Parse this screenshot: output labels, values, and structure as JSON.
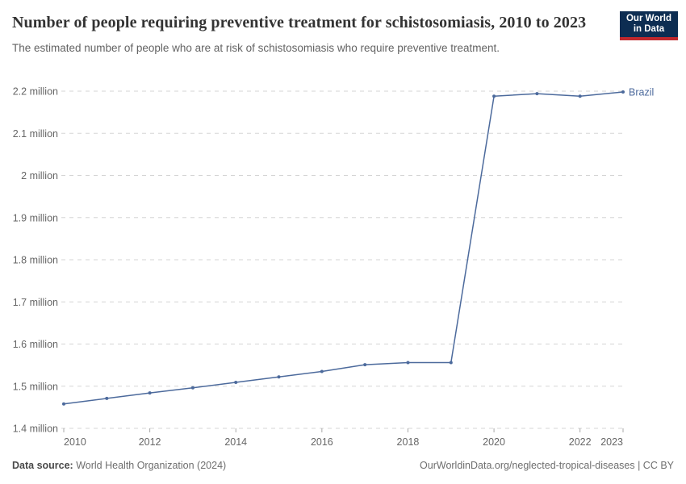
{
  "header": {
    "title": "Number of people requiring preventive treatment for schistosomiasis, 2010 to 2023",
    "subtitle": "The estimated number of people who are at risk of schistosomiasis who require preventive treatment.",
    "logo": {
      "line1": "Our World",
      "line2": "in Data"
    }
  },
  "colors": {
    "line": "#4c6a9c",
    "grid": "#d5d5d5",
    "tick": "#a8a8a8",
    "axis_text": "#666666",
    "title_text": "#333333",
    "subtitle_text": "#636363",
    "footer_text": "#6e6e6e",
    "logo_bg": "#0d2d52",
    "logo_bar": "#c0282d",
    "background": "#ffffff"
  },
  "chart_data": {
    "type": "line",
    "title": "Number of people requiring preventive treatment for schistosomiasis, 2010 to 2023",
    "xlabel": "",
    "ylabel": "",
    "xlim": [
      2010,
      2023
    ],
    "ylim_millions": [
      1.4,
      2.2
    ],
    "grid": "horizontal-dashed",
    "legend": "end-of-line-label",
    "unit": "million people",
    "series": [
      {
        "name": "Brazil",
        "x": [
          2010,
          2011,
          2012,
          2013,
          2014,
          2015,
          2016,
          2017,
          2018,
          2019,
          2020,
          2021,
          2022,
          2023
        ],
        "values_millions": [
          1.458,
          1.471,
          1.484,
          1.496,
          1.509,
          1.522,
          1.535,
          1.551,
          1.556,
          1.556,
          2.188,
          2.194,
          2.188,
          2.198
        ]
      }
    ],
    "yticks": [
      {
        "value": 1.4,
        "label": "1.4 million"
      },
      {
        "value": 1.5,
        "label": "1.5 million"
      },
      {
        "value": 1.6,
        "label": "1.6 million"
      },
      {
        "value": 1.7,
        "label": "1.7 million"
      },
      {
        "value": 1.8,
        "label": "1.8 million"
      },
      {
        "value": 1.9,
        "label": "1.9 million"
      },
      {
        "value": 2.0,
        "label": "2 million"
      },
      {
        "value": 2.1,
        "label": "2.1 million"
      },
      {
        "value": 2.2,
        "label": "2.2 million"
      }
    ],
    "xticks": [
      {
        "value": 2010,
        "label": "2010"
      },
      {
        "value": 2012,
        "label": "2012"
      },
      {
        "value": 2014,
        "label": "2014"
      },
      {
        "value": 2016,
        "label": "2016"
      },
      {
        "value": 2018,
        "label": "2018"
      },
      {
        "value": 2020,
        "label": "2020"
      },
      {
        "value": 2022,
        "label": "2022"
      },
      {
        "value": 2023,
        "label": "2023"
      }
    ]
  },
  "footer": {
    "source_label": "Data source:",
    "source_value": "World Health Organization (2024)",
    "credit": "OurWorldinData.org/neglected-tropical-diseases | CC BY"
  }
}
